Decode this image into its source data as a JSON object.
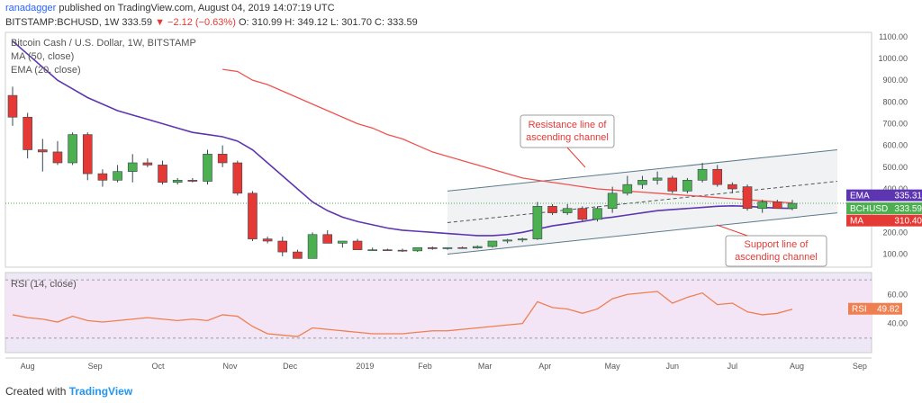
{
  "header": {
    "author": "ranadagger",
    "published": "published on TradingView.com, August 04, 2019 14:07:19 UTC",
    "symbol": "BITSTAMP:BCHUSD, 1W",
    "price": "333.59",
    "change": "▼ −2.12 (−0.63%)",
    "ohlc": "O: 310.99  H: 349.12  L: 301.70  C: 333.59"
  },
  "legend": {
    "title": "Bitcoin Cash / U.S. Dollar, 1W, BITSTAMP",
    "ma": "MA (50, close)",
    "ema": "EMA (20, close)",
    "rsi": "RSI (14, close)"
  },
  "footer": {
    "prefix": "Created with",
    "brand": "TradingView"
  },
  "colors": {
    "up": "#4caf50",
    "down": "#e53935",
    "ema": "#5e35b1",
    "ma": "#ef5350",
    "channel": "#5b7a8a",
    "rsi_line": "#ef7f50",
    "rsi_bg": "#ede7f6",
    "rsi_band": "#f3e5f5"
  },
  "chart_data": [
    {
      "type": "candlestick",
      "title": "Bitcoin Cash / U.S. Dollar, 1W, BITSTAMP",
      "y_ticks": [
        100,
        200,
        300,
        400,
        500,
        600,
        700,
        800,
        900,
        1000,
        1100
      ],
      "ylim": [
        40,
        1120
      ],
      "x_labels": [
        "Aug",
        "Sep",
        "Oct",
        "Nov",
        "Dec",
        "2019",
        "Feb",
        "Mar",
        "Apr",
        "May",
        "Jun",
        "Jul",
        "Aug",
        "Sep"
      ],
      "x_label_index": [
        1,
        5.5,
        9.7,
        14.5,
        18.5,
        23.5,
        27.5,
        31.5,
        35.5,
        40,
        44,
        48,
        52.3,
        56.5
      ],
      "candles": [
        [
          830,
          870,
          690,
          730
        ],
        [
          730,
          750,
          540,
          580
        ],
        [
          580,
          630,
          480,
          570
        ],
        [
          570,
          620,
          510,
          520
        ],
        [
          520,
          660,
          510,
          650
        ],
        [
          650,
          660,
          440,
          470
        ],
        [
          470,
          490,
          410,
          440
        ],
        [
          440,
          510,
          430,
          480
        ],
        [
          480,
          560,
          430,
          520
        ],
        [
          520,
          540,
          500,
          510
        ],
        [
          510,
          530,
          420,
          430
        ],
        [
          430,
          450,
          420,
          440
        ],
        [
          440,
          450,
          430,
          435
        ],
        [
          435,
          580,
          420,
          560
        ],
        [
          560,
          600,
          500,
          520
        ],
        [
          520,
          530,
          370,
          380
        ],
        [
          380,
          390,
          160,
          170
        ],
        [
          170,
          180,
          150,
          160
        ],
        [
          160,
          180,
          90,
          110
        ],
        [
          110,
          120,
          80,
          80
        ],
        [
          80,
          200,
          80,
          190
        ],
        [
          190,
          210,
          150,
          150
        ],
        [
          150,
          160,
          130,
          160
        ],
        [
          160,
          170,
          130,
          120
        ],
        [
          120,
          130,
          115,
          120
        ],
        [
          120,
          125,
          115,
          118
        ],
        [
          118,
          125,
          110,
          115
        ],
        [
          115,
          130,
          110,
          130
        ],
        [
          130,
          135,
          120,
          125
        ],
        [
          125,
          130,
          120,
          130
        ],
        [
          130,
          135,
          125,
          128
        ],
        [
          128,
          140,
          125,
          135
        ],
        [
          135,
          160,
          130,
          160
        ],
        [
          160,
          170,
          150,
          165
        ],
        [
          165,
          175,
          155,
          170
        ],
        [
          170,
          340,
          165,
          320
        ],
        [
          320,
          330,
          280,
          290
        ],
        [
          290,
          330,
          280,
          310
        ],
        [
          310,
          320,
          250,
          260
        ],
        [
          260,
          320,
          250,
          310
        ],
        [
          310,
          410,
          290,
          380
        ],
        [
          380,
          460,
          370,
          420
        ],
        [
          420,
          460,
          400,
          440
        ],
        [
          440,
          480,
          420,
          450
        ],
        [
          450,
          460,
          380,
          390
        ],
        [
          390,
          450,
          380,
          440
        ],
        [
          440,
          520,
          430,
          490
        ],
        [
          490,
          510,
          410,
          420
        ],
        [
          420,
          430,
          380,
          400
        ],
        [
          410,
          420,
          300,
          310
        ],
        [
          310,
          350,
          290,
          340
        ],
        [
          340,
          350,
          310,
          310
        ],
        [
          310,
          349.12,
          301.7,
          333.59
        ]
      ],
      "ema_20": [
        null,
        null,
        null,
        null,
        null,
        null,
        null,
        null,
        null,
        null,
        null,
        null,
        null,
        null,
        950,
        940,
        900,
        880,
        850,
        820,
        790,
        760,
        730,
        700,
        680,
        650,
        630,
        600,
        570,
        550,
        530,
        510,
        490,
        470,
        450,
        440,
        430,
        420,
        410,
        400,
        395,
        390,
        385,
        380,
        375,
        370,
        365,
        360,
        355,
        350,
        345,
        340,
        335.31
      ],
      "ma_50": [
        1080,
        1020,
        960,
        900,
        860,
        820,
        790,
        760,
        740,
        720,
        700,
        680,
        660,
        650,
        640,
        620,
        580,
        520,
        460,
        400,
        340,
        300,
        270,
        250,
        235,
        220,
        210,
        205,
        200,
        195,
        190,
        185,
        185,
        190,
        200,
        215,
        230,
        240,
        250,
        262,
        270,
        280,
        290,
        300,
        305,
        310,
        315,
        320,
        322,
        320,
        315,
        312,
        310.4
      ],
      "price_labels": [
        {
          "name": "EMA",
          "value": "335.31",
          "color": "#5e35b1"
        },
        {
          "name": "BCHUSD",
          "value": "333.59",
          "color": "#4caf50"
        },
        {
          "name": "MA",
          "value": "310.40",
          "color": "#e53935"
        }
      ],
      "channel": {
        "upper_from": [
          29,
          390
        ],
        "upper_to": [
          55,
          580
        ],
        "lower_from": [
          29,
          100
        ],
        "lower_to": [
          55,
          290
        ]
      },
      "annotations": [
        {
          "lines": [
            "Resistance line of",
            "ascending channel"
          ]
        },
        {
          "lines": [
            "Support line of",
            "ascending channel"
          ]
        }
      ]
    },
    {
      "type": "line",
      "title": "RSI (14, close)",
      "y_ticks": [
        40,
        60
      ],
      "ylim": [
        20,
        75
      ],
      "band": [
        30,
        70
      ],
      "values": [
        46,
        44,
        43,
        41,
        45,
        42,
        41,
        42,
        43,
        44,
        43,
        42,
        43,
        42,
        46,
        45,
        38,
        33,
        32,
        31,
        37,
        36,
        35,
        34,
        33,
        33,
        33,
        34,
        35,
        35,
        36,
        37,
        38,
        39,
        40,
        55,
        51,
        50,
        47,
        50,
        57,
        60,
        61,
        62,
        54,
        58,
        61,
        53,
        54,
        48,
        46,
        47,
        49.82
      ],
      "last_label": {
        "name": "RSI",
        "value": "49.82"
      }
    }
  ]
}
